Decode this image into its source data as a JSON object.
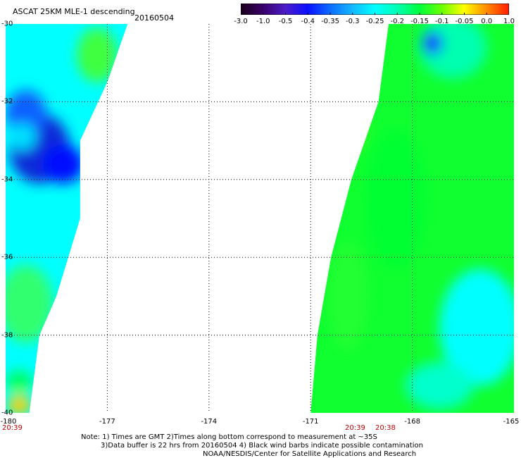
{
  "title": "ASCAT 25KM MLE-1 descending",
  "date": "20160504",
  "colorbar": {
    "labels": [
      "-3.0",
      "-1.0",
      "-0.5",
      "-0.4",
      "-0.35",
      "-0.3",
      "-0.25",
      "-0.2",
      "-0.15",
      "-0.1",
      "-0.05",
      "0.0",
      "1.0"
    ],
    "colors": [
      "#1a0018",
      "#3a006a",
      "#4c1cc8",
      "#0a10ff",
      "#0b6cff",
      "#12b8ff",
      "#00ffff",
      "#00ffb4",
      "#00ff3a",
      "#6cff00",
      "#ffff00",
      "#ff8a00",
      "#ff1a00"
    ]
  },
  "lat_labels": [
    "-30",
    "-32",
    "-34",
    "-36",
    "-38",
    "-40"
  ],
  "lon_labels": [
    "-180",
    "-177",
    "-174",
    "-171",
    "-168",
    "-165"
  ],
  "lat_range": [
    -40,
    -30
  ],
  "lon_range": [
    -180,
    -165
  ],
  "times": {
    "left": "20:39",
    "right_a": "20:39",
    "right_b": "20:38"
  },
  "notes": [
    "Note: 1) Times are GMT 2)Times along bottom correspond to measurement at ~35S",
    "3)Data buffer is 22 hrs from 20160504 4) Black wind barbs indicate possible contamination",
    "NOAA/NESDIS/Center for Satellite Applications and Research"
  ],
  "swaths": [
    {
      "name": "west-swath",
      "outline_lonlat": [
        [
          -180,
          -30
        ],
        [
          -176.4,
          -30
        ],
        [
          -177.0,
          -31.5
        ],
        [
          -177.8,
          -33.0
        ],
        [
          -177.8,
          -35.0
        ],
        [
          -178.5,
          -37.0
        ],
        [
          -179.0,
          -38.0
        ],
        [
          -179.3,
          -40.0
        ],
        [
          -180,
          -40.0
        ]
      ],
      "patches": [
        {
          "lon": -179.0,
          "lat": -33.2,
          "rx": 0.9,
          "ry": 0.9,
          "color": "#0a2ad8"
        },
        {
          "lon": -178.3,
          "lat": -33.6,
          "rx": 0.6,
          "ry": 0.5,
          "color": "#0010ff"
        },
        {
          "lon": -179.4,
          "lat": -32.3,
          "rx": 0.6,
          "ry": 0.6,
          "color": "#1060ff"
        },
        {
          "lon": -179.5,
          "lat": -32.9,
          "rx": 0.4,
          "ry": 0.35,
          "color": "#00e0ff"
        },
        {
          "lon": -177.3,
          "lat": -30.8,
          "rx": 0.6,
          "ry": 0.7,
          "color": "#40ff40"
        },
        {
          "lon": -179.4,
          "lat": -37.2,
          "rx": 0.8,
          "ry": 1.0,
          "color": "#30ff70"
        },
        {
          "lon": -179.6,
          "lat": -39.8,
          "rx": 0.35,
          "ry": 0.25,
          "color": "#ffd000"
        },
        {
          "lon": -179.6,
          "lat": -39.2,
          "rx": 0.4,
          "ry": 0.3,
          "color": "#00ff60"
        }
      ]
    },
    {
      "name": "east-swath",
      "outline_lonlat": [
        [
          -168.7,
          -30
        ],
        [
          -165,
          -30
        ],
        [
          -165,
          -40
        ],
        [
          -171.0,
          -40
        ],
        [
          -170.8,
          -38.0
        ],
        [
          -170.4,
          -36.0
        ],
        [
          -169.8,
          -34.0
        ],
        [
          -169.0,
          -32.0
        ]
      ],
      "patches": [
        {
          "lon": -166.8,
          "lat": -30.6,
          "rx": 1.0,
          "ry": 0.8,
          "color": "#00ffb0"
        },
        {
          "lon": -167.4,
          "lat": -30.5,
          "rx": 0.3,
          "ry": 0.3,
          "color": "#0a30ff"
        },
        {
          "lon": -168.5,
          "lat": -34.5,
          "rx": 0.9,
          "ry": 1.8,
          "color": "#00ff30"
        },
        {
          "lon": -166.0,
          "lat": -37.8,
          "rx": 1.2,
          "ry": 1.5,
          "color": "#00ffff"
        },
        {
          "lon": -167.2,
          "lat": -39.3,
          "rx": 1.0,
          "ry": 0.6,
          "color": "#00ffcc"
        },
        {
          "lon": -169.9,
          "lat": -37.0,
          "rx": 0.6,
          "ry": 1.4,
          "color": "#20ff30"
        },
        {
          "lon": -169.8,
          "lat": -32.5,
          "rx": 0.3,
          "ry": 0.6,
          "color": "#c0ff00"
        }
      ]
    }
  ]
}
